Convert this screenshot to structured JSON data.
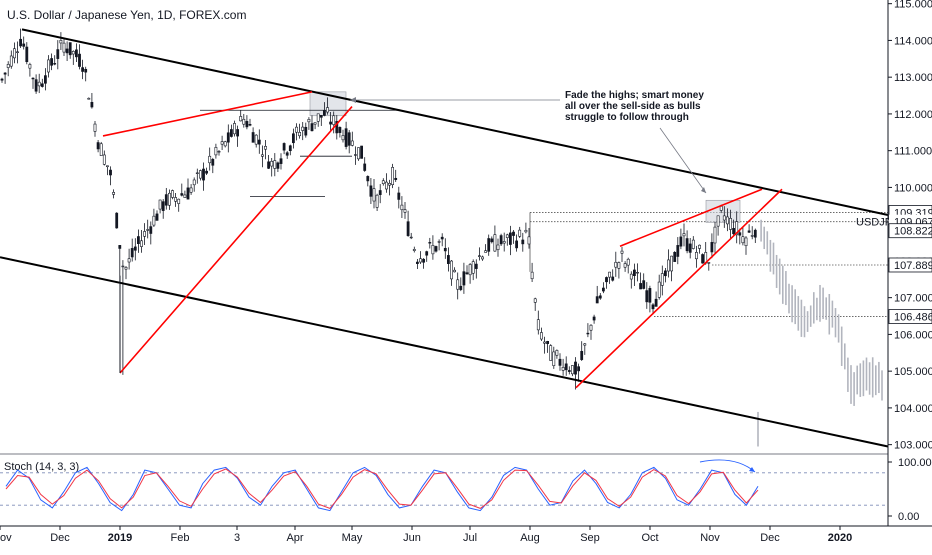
{
  "header": {
    "title": "U.S. Dollar / Japanese Yen, 1D, FOREX.com"
  },
  "colors": {
    "candle": "#131722",
    "projection": "#b2b5be",
    "trendline_red": "#ff0000",
    "channel": "#000000",
    "stoch_k": "#2962ff",
    "stoch_d": "#f23645",
    "stoch_band": "#7e8cb8",
    "highlight_box": "#d1d4dc"
  },
  "chart_data": [
    {
      "type": "candlestick",
      "title": "U.S. Dollar / Japanese Yen, 1D, FOREX.com",
      "symbol": "USDJPY",
      "ylim": [
        102.8,
        115.1
      ],
      "y_ticks": [
        103,
        104,
        105,
        106,
        107,
        108,
        109,
        110,
        111,
        112,
        113,
        114,
        115
      ],
      "y_tick_labels": [
        "103.000",
        "104.000",
        "105.000",
        "106.000",
        "107.000",
        "108.000",
        "109.000",
        "110.000",
        "111.000",
        "112.000",
        "113.000",
        "114.000",
        "115.000"
      ],
      "x_tick_labels": [
        "Nov",
        "Dec",
        "2019",
        "Feb",
        "3",
        "Apr",
        "May",
        "Jun",
        "Jul",
        "Aug",
        "Sep",
        "Oct",
        "Nov",
        "Dec",
        "2020"
      ],
      "price_labels": [
        {
          "text": "109.319",
          "value": 109.319,
          "style": "boxed"
        },
        {
          "text": "109.067",
          "value": 109.067,
          "style": "plain"
        },
        {
          "text": "108.822",
          "value": 108.822,
          "style": "boxed"
        },
        {
          "text": "107.889",
          "value": 107.889,
          "style": "boxed"
        },
        {
          "text": "106.486",
          "value": 106.486,
          "style": "boxed"
        }
      ],
      "symbol_label": "USDJPY",
      "annotation": {
        "lines": [
          "Fade the highs; smart money",
          "all over the sell-side as bulls",
          "struggle to follow through"
        ]
      },
      "anchor_prices": [
        {
          "date": "Nov 1",
          "close": 112.8
        },
        {
          "date": "Nov 12",
          "close": 114.1
        },
        {
          "date": "Nov 20",
          "close": 112.7
        },
        {
          "date": "Dec 3",
          "close": 113.9
        },
        {
          "date": "Dec 13",
          "close": 113.4
        },
        {
          "date": "Dec 21",
          "close": 111.2
        },
        {
          "date": "Dec 27",
          "close": 110.4
        },
        {
          "date": "Jan 3",
          "close": 107.7
        },
        {
          "date": "Jan 10",
          "close": 108.4
        },
        {
          "date": "Jan 24",
          "close": 109.6
        },
        {
          "date": "Feb 6",
          "close": 109.9
        },
        {
          "date": "Feb 20",
          "close": 110.8
        },
        {
          "date": "Mar 5",
          "close": 111.9
        },
        {
          "date": "Mar 20",
          "close": 110.6
        },
        {
          "date": "Apr 3",
          "close": 111.5
        },
        {
          "date": "Apr 17",
          "close": 112.0
        },
        {
          "date": "Apr 25",
          "close": 111.6
        },
        {
          "date": "May 6",
          "close": 110.9
        },
        {
          "date": "May 13",
          "close": 109.6
        },
        {
          "date": "May 22",
          "close": 110.3
        },
        {
          "date": "Jun 4",
          "close": 108.1
        },
        {
          "date": "Jun 17",
          "close": 108.5
        },
        {
          "date": "Jun 25",
          "close": 107.3
        },
        {
          "date": "Jul 10",
          "close": 108.4
        },
        {
          "date": "Jul 31",
          "close": 108.7
        },
        {
          "date": "Aug 5",
          "close": 106.2
        },
        {
          "date": "Aug 12",
          "close": 105.4
        },
        {
          "date": "Aug 26",
          "close": 105.0
        },
        {
          "date": "Sep 5",
          "close": 106.9
        },
        {
          "date": "Sep 17",
          "close": 108.1
        },
        {
          "date": "Oct 3",
          "close": 106.9
        },
        {
          "date": "Oct 18",
          "close": 108.6
        },
        {
          "date": "Oct 31",
          "close": 108.0
        },
        {
          "date": "Nov 7",
          "close": 109.3
        },
        {
          "date": "Nov 19",
          "close": 108.6
        },
        {
          "date": "Nov 26",
          "close": 109.0
        }
      ],
      "projection_prices": [
        {
          "date": "Nov 26",
          "close": 109.0
        },
        {
          "date": "Dec 3",
          "close": 108.0
        },
        {
          "date": "Dec 10",
          "close": 106.8
        },
        {
          "date": "Dec 17",
          "close": 106.3
        },
        {
          "date": "Dec 24",
          "close": 106.9
        },
        {
          "date": "Dec 31",
          "close": 106.2
        },
        {
          "date": "Jan 7",
          "close": 104.5
        },
        {
          "date": "Jan 14",
          "close": 104.8
        },
        {
          "date": "Jan 21",
          "close": 104.9
        },
        {
          "date": "Jan 28",
          "close": 103.3
        }
      ]
    },
    {
      "type": "line",
      "title": "Stoch (14, 3, 3)",
      "ylim": [
        0,
        100
      ],
      "y_tick_labels": [
        "100.00",
        "0.00"
      ],
      "bands": [
        80,
        20
      ],
      "series": [
        {
          "name": "%K",
          "values": [
            55,
            85,
            70,
            30,
            15,
            45,
            80,
            90,
            60,
            25,
            10,
            40,
            85,
            80,
            50,
            20,
            15,
            60,
            85,
            90,
            70,
            35,
            20,
            55,
            80,
            85,
            50,
            15,
            10,
            45,
            80,
            90,
            75,
            40,
            15,
            20,
            55,
            85,
            80,
            45,
            15,
            10,
            35,
            75,
            90,
            85,
            50,
            20,
            25,
            65,
            85,
            60,
            25,
            15,
            40,
            80,
            90,
            70,
            30,
            20,
            50,
            85,
            80,
            40,
            20,
            55
          ]
        },
        {
          "name": "%D",
          "values": [
            50,
            75,
            72,
            40,
            22,
            38,
            70,
            85,
            65,
            32,
            15,
            35,
            75,
            80,
            55,
            28,
            18,
            50,
            78,
            87,
            72,
            42,
            25,
            48,
            74,
            82,
            55,
            22,
            14,
            40,
            72,
            86,
            78,
            48,
            22,
            20,
            48,
            78,
            80,
            52,
            22,
            14,
            30,
            66,
            85,
            84,
            57,
            27,
            24,
            56,
            80,
            66,
            32,
            18,
            35,
            72,
            86,
            74,
            38,
            23,
            45,
            78,
            81,
            48,
            24,
            48
          ]
        }
      ]
    }
  ]
}
